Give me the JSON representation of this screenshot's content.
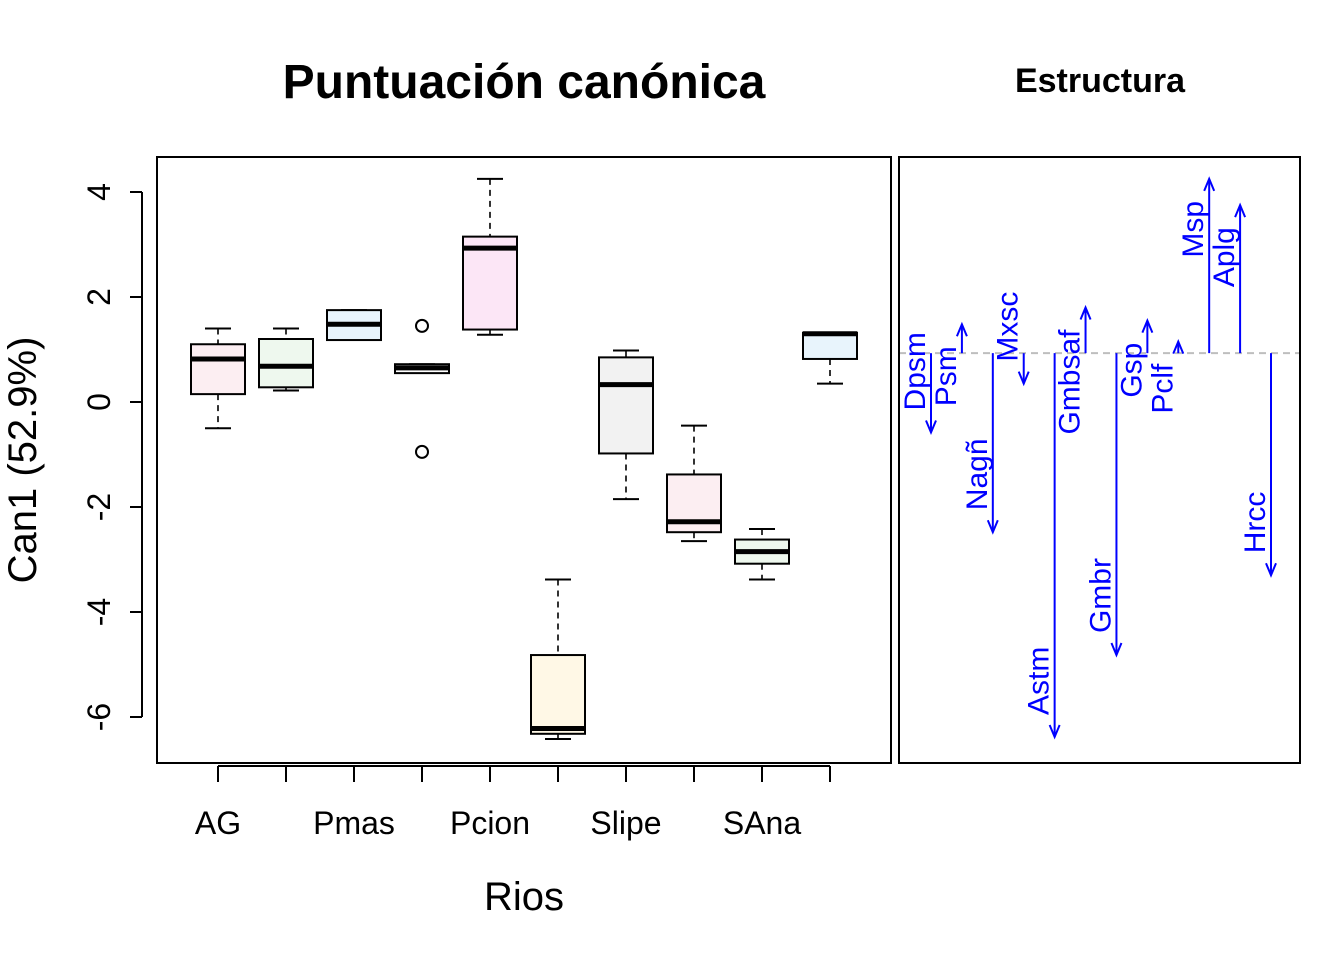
{
  "chart_data": [
    {
      "type": "box",
      "title": "Puntuación canónica",
      "xlabel": "Rios",
      "ylabel": "Can1 (52.9%)",
      "ylim": [
        -6.8,
        4.7
      ],
      "yticks": [
        4,
        2,
        0,
        -2,
        -4,
        -6
      ],
      "ytick_labels": [
        "4",
        "2",
        "0",
        "-2",
        "-4",
        "-6"
      ],
      "categories": [
        "AG",
        "",
        "Pmas",
        "",
        "Pcion",
        "",
        "Slipe",
        "",
        "SAna",
        ""
      ],
      "shown_category_labels": [
        "AG",
        "Pmas",
        "Pcion",
        "Slipe",
        "SAna"
      ],
      "boxes": [
        {
          "lw": -0.5,
          "q1": 0.15,
          "med": 0.82,
          "q3": 1.1,
          "uw": 1.4,
          "out": [],
          "fill": "#fceef2"
        },
        {
          "lw": 0.22,
          "q1": 0.28,
          "med": 0.68,
          "q3": 1.2,
          "uw": 1.4,
          "out": [],
          "fill": "#eef8ee"
        },
        {
          "lw": 1.18,
          "q1": 1.18,
          "med": 1.48,
          "q3": 1.75,
          "uw": 1.75,
          "out": [],
          "fill": "#e8f4fc"
        },
        {
          "lw": 0.58,
          "q1": 0.55,
          "med": 0.65,
          "q3": 0.72,
          "uw": 0.72,
          "out": [
            1.45,
            -0.95
          ],
          "fill": "#ffffff"
        },
        {
          "lw": 1.28,
          "q1": 1.38,
          "med": 2.93,
          "q3": 3.15,
          "uw": 4.25,
          "out": [],
          "fill": "#fce6f6"
        },
        {
          "lw": -6.42,
          "q1": -6.32,
          "med": -6.22,
          "q3": -4.82,
          "uw": -3.38,
          "out": [],
          "fill": "#fff8e6"
        },
        {
          "lw": -1.85,
          "q1": -0.98,
          "med": 0.33,
          "q3": 0.85,
          "uw": 0.98,
          "out": [],
          "fill": "#f2f2f2"
        },
        {
          "lw": -2.65,
          "q1": -2.48,
          "med": -2.28,
          "q3": -1.38,
          "uw": -0.45,
          "out": [],
          "fill": "#fceef2"
        },
        {
          "lw": -3.38,
          "q1": -3.08,
          "med": -2.85,
          "q3": -2.62,
          "uw": -2.42,
          "out": [],
          "fill": "#eef8ee"
        },
        {
          "lw": 0.35,
          "q1": 0.82,
          "med": 1.3,
          "q3": 1.32,
          "uw": 1.32,
          "out": [],
          "fill": "#e8f4fc"
        }
      ]
    },
    {
      "type": "vectors",
      "title": "Estructura",
      "reference_value": 0.93,
      "vectors": [
        {
          "label": "Dpsm",
          "to": -0.58
        },
        {
          "label": "Psm",
          "to": 1.48
        },
        {
          "label": "Nagñ",
          "to": -2.48
        },
        {
          "label": "Mxsc",
          "to": 0.35
        },
        {
          "label": "Astm",
          "to": -6.38
        },
        {
          "label": "Gmbsaf",
          "to": 1.8
        },
        {
          "label": "Gmbr",
          "to": -4.82
        },
        {
          "label": "Gsp",
          "to": 1.55
        },
        {
          "label": "Pclf",
          "to": 1.15
        },
        {
          "label": "Msp",
          "to": 4.25
        },
        {
          "label": "Aplg",
          "to": 3.75
        },
        {
          "label": "Hrcc",
          "to": -3.3
        }
      ]
    }
  ],
  "colors": {
    "vector": "#0000ff",
    "reference_line": "#bebebe",
    "median": "#000000"
  }
}
